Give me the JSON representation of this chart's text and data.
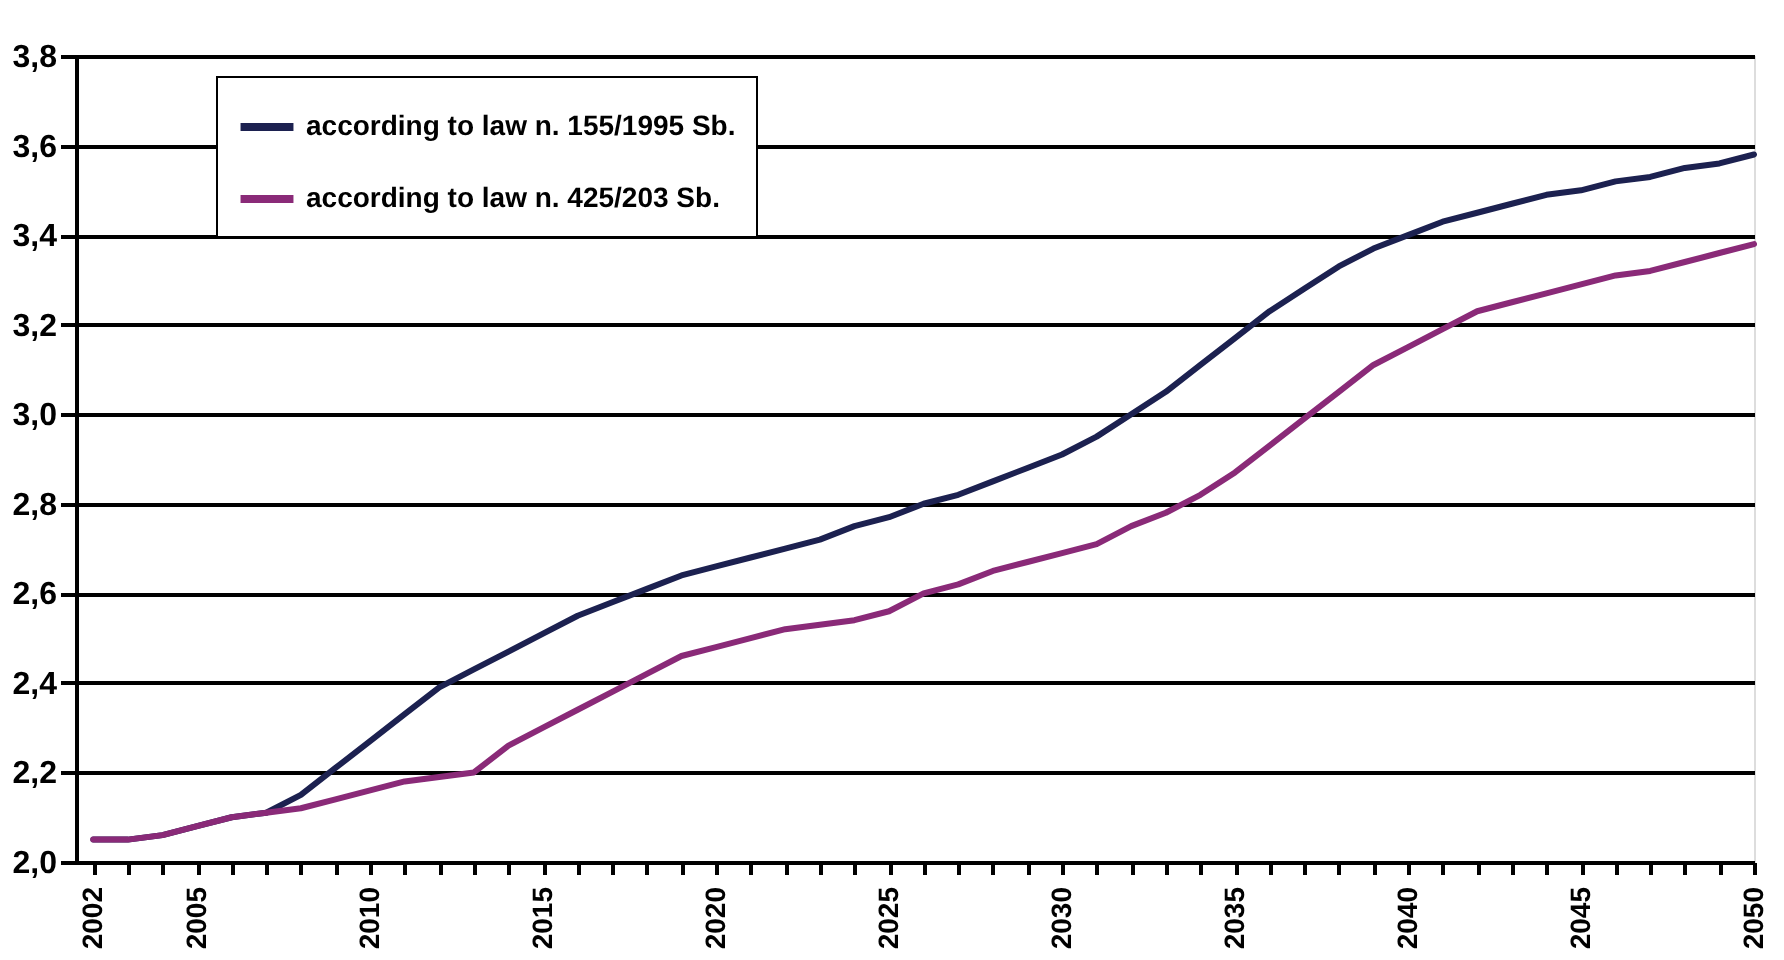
{
  "chart_data": {
    "type": "line",
    "x": [
      2002,
      2003,
      2004,
      2005,
      2006,
      2007,
      2008,
      2009,
      2010,
      2011,
      2012,
      2013,
      2014,
      2015,
      2016,
      2017,
      2018,
      2019,
      2020,
      2021,
      2022,
      2023,
      2024,
      2025,
      2026,
      2027,
      2028,
      2029,
      2030,
      2031,
      2032,
      2033,
      2034,
      2035,
      2036,
      2037,
      2038,
      2039,
      2040,
      2041,
      2042,
      2043,
      2044,
      2045,
      2046,
      2047,
      2048,
      2049,
      2050
    ],
    "series": [
      {
        "name": "according to law n. 155/1995 Sb.",
        "color": "#1c2150",
        "values": [
          2.05,
          2.05,
          2.06,
          2.08,
          2.1,
          2.11,
          2.15,
          2.21,
          2.27,
          2.33,
          2.39,
          2.43,
          2.47,
          2.51,
          2.55,
          2.58,
          2.61,
          2.64,
          2.66,
          2.68,
          2.7,
          2.72,
          2.75,
          2.77,
          2.8,
          2.82,
          2.85,
          2.88,
          2.91,
          2.95,
          3.0,
          3.05,
          3.11,
          3.17,
          3.23,
          3.28,
          3.33,
          3.37,
          3.4,
          3.43,
          3.45,
          3.47,
          3.49,
          3.5,
          3.52,
          3.53,
          3.55,
          3.56,
          3.58
        ]
      },
      {
        "name": "according to law n. 425/203 Sb.",
        "color": "#8a2a78",
        "values": [
          2.05,
          2.05,
          2.06,
          2.08,
          2.1,
          2.11,
          2.12,
          2.14,
          2.16,
          2.18,
          2.19,
          2.2,
          2.26,
          2.3,
          2.34,
          2.38,
          2.42,
          2.46,
          2.48,
          2.5,
          2.52,
          2.53,
          2.54,
          2.56,
          2.6,
          2.62,
          2.65,
          2.67,
          2.69,
          2.71,
          2.75,
          2.78,
          2.82,
          2.87,
          2.93,
          2.99,
          3.05,
          3.11,
          3.15,
          3.19,
          3.23,
          3.25,
          3.27,
          3.29,
          3.31,
          3.32,
          3.34,
          3.36,
          3.38
        ]
      }
    ],
    "xlim": [
      2001.5,
      2050
    ],
    "xticks": [
      2002,
      {
        "value": 2003,
        "label": null
      },
      {
        "value": 2004,
        "label": null
      },
      2005,
      {
        "value": 2006,
        "label": null
      },
      {
        "value": 2007,
        "label": null
      },
      {
        "value": 2008,
        "label": null
      },
      {
        "value": 2009,
        "label": null
      },
      2010,
      {
        "value": 2011,
        "label": null
      },
      {
        "value": 2012,
        "label": null
      },
      {
        "value": 2013,
        "label": null
      },
      {
        "value": 2014,
        "label": null
      },
      2015,
      {
        "value": 2016,
        "label": null
      },
      {
        "value": 2017,
        "label": null
      },
      {
        "value": 2018,
        "label": null
      },
      {
        "value": 2019,
        "label": null
      },
      2020,
      {
        "value": 2021,
        "label": null
      },
      {
        "value": 2022,
        "label": null
      },
      {
        "value": 2023,
        "label": null
      },
      {
        "value": 2024,
        "label": null
      },
      2025,
      {
        "value": 2026,
        "label": null
      },
      {
        "value": 2027,
        "label": null
      },
      {
        "value": 2028,
        "label": null
      },
      {
        "value": 2029,
        "label": null
      },
      2030,
      {
        "value": 2031,
        "label": null
      },
      {
        "value": 2032,
        "label": null
      },
      {
        "value": 2033,
        "label": null
      },
      {
        "value": 2034,
        "label": null
      },
      2035,
      {
        "value": 2036,
        "label": null
      },
      {
        "value": 2037,
        "label": null
      },
      {
        "value": 2038,
        "label": null
      },
      {
        "value": 2039,
        "label": null
      },
      2040,
      {
        "value": 2041,
        "label": null
      },
      {
        "value": 2042,
        "label": null
      },
      {
        "value": 2043,
        "label": null
      },
      {
        "value": 2044,
        "label": null
      },
      2045,
      {
        "value": 2046,
        "label": null
      },
      {
        "value": 2047,
        "label": null
      },
      {
        "value": 2048,
        "label": null
      },
      {
        "value": 2049,
        "label": null
      },
      2050
    ],
    "ylim": [
      2.0,
      3.8
    ],
    "yticks": [
      {
        "value": 2.0,
        "label": "2,0"
      },
      {
        "value": 2.2,
        "label": "2,2"
      },
      {
        "value": 2.4,
        "label": "2,4"
      },
      {
        "value": 2.6,
        "label": "2,6"
      },
      {
        "value": 2.8,
        "label": "2,8"
      },
      {
        "value": 3.0,
        "label": "3,0"
      },
      {
        "value": 3.2,
        "label": "3,2"
      },
      {
        "value": 3.4,
        "label": "3,4"
      },
      {
        "value": 3.6,
        "label": "3,6"
      },
      {
        "value": 3.8,
        "label": "3,8"
      }
    ],
    "grid": "y",
    "legend": "top left",
    "marker": "none",
    "line_style": "solid"
  }
}
